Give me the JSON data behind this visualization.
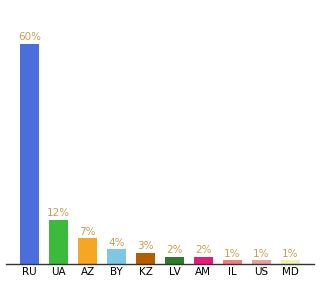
{
  "categories": [
    "RU",
    "UA",
    "AZ",
    "BY",
    "KZ",
    "LV",
    "AM",
    "IL",
    "US",
    "MD"
  ],
  "values": [
    60,
    12,
    7,
    4,
    3,
    2,
    2,
    1,
    1,
    1
  ],
  "labels": [
    "60%",
    "12%",
    "7%",
    "4%",
    "3%",
    "2%",
    "2%",
    "1%",
    "1%",
    "1%"
  ],
  "colors": [
    "#4a6fdc",
    "#3cba3c",
    "#f5a623",
    "#7ec8e3",
    "#b85c00",
    "#2d7a2d",
    "#e8197a",
    "#f08080",
    "#e8a0a0",
    "#f0f0b0"
  ],
  "background_color": "#ffffff",
  "label_color": "#c8a050",
  "label_fontsize": 7.5,
  "tick_fontsize": 7.5,
  "ylim": [
    0,
    68
  ]
}
